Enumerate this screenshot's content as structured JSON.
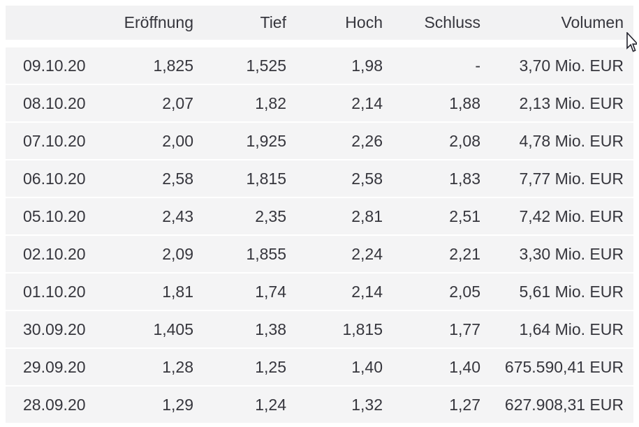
{
  "table": {
    "columns": [
      {
        "key": "date",
        "label": ""
      },
      {
        "key": "open",
        "label": "Eröffnung"
      },
      {
        "key": "low",
        "label": "Tief"
      },
      {
        "key": "high",
        "label": "Hoch"
      },
      {
        "key": "close",
        "label": "Schluss"
      },
      {
        "key": "volume",
        "label": "Volumen"
      }
    ],
    "rows": [
      {
        "date": "09.10.20",
        "open": "1,825",
        "low": "1,525",
        "high": "1,98",
        "close": "-",
        "volume": "3,70 Mio. EUR"
      },
      {
        "date": "08.10.20",
        "open": "2,07",
        "low": "1,82",
        "high": "2,14",
        "close": "1,88",
        "volume": "2,13 Mio. EUR"
      },
      {
        "date": "07.10.20",
        "open": "2,00",
        "low": "1,925",
        "high": "2,26",
        "close": "2,08",
        "volume": "4,78 Mio. EUR"
      },
      {
        "date": "06.10.20",
        "open": "2,58",
        "low": "1,815",
        "high": "2,58",
        "close": "1,83",
        "volume": "7,77 Mio. EUR"
      },
      {
        "date": "05.10.20",
        "open": "2,43",
        "low": "2,35",
        "high": "2,81",
        "close": "2,51",
        "volume": "7,42 Mio. EUR"
      },
      {
        "date": "02.10.20",
        "open": "2,09",
        "low": "1,855",
        "high": "2,24",
        "close": "2,21",
        "volume": "3,30 Mio. EUR"
      },
      {
        "date": "01.10.20",
        "open": "1,81",
        "low": "1,74",
        "high": "2,14",
        "close": "2,05",
        "volume": "5,61 Mio. EUR"
      },
      {
        "date": "30.09.20",
        "open": "1,405",
        "low": "1,38",
        "high": "1,815",
        "close": "1,77",
        "volume": "1,64 Mio. EUR"
      },
      {
        "date": "29.09.20",
        "open": "1,28",
        "low": "1,25",
        "high": "1,40",
        "close": "1,40",
        "volume": "675.590,41 EUR"
      },
      {
        "date": "28.09.20",
        "open": "1,29",
        "low": "1,24",
        "high": "1,32",
        "close": "1,27",
        "volume": "627.908,31 EUR"
      }
    ]
  },
  "colors": {
    "page_background": "#ffffff",
    "header_background": "#f2f2f3",
    "row_background": "#f4f4f5",
    "text": "#36363d",
    "separator": "#ffffff"
  },
  "cursor": {
    "type": "arrow-pointer"
  }
}
